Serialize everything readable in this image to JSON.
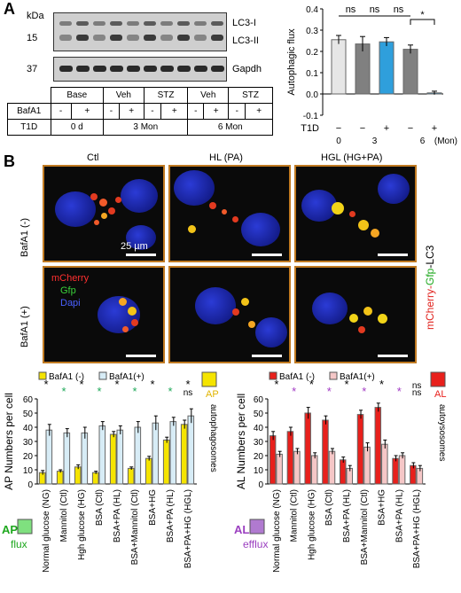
{
  "panel_a": {
    "letter": "A",
    "kda_label": "kDa",
    "mw_15": "15",
    "mw_37": "37",
    "lc3_i": "LC3-I",
    "lc3_ii": "LC3-II",
    "gapdh": "Gapdh",
    "table": {
      "groups": [
        "Base",
        "Veh",
        "STZ",
        "Veh",
        "STZ"
      ],
      "bafa1_label": "BafA1",
      "bafa1_values": [
        "-",
        "+",
        "-",
        "+",
        "-",
        "+",
        "-",
        "+",
        "-",
        "+"
      ],
      "t1d_label": "T1D",
      "t1d_values": [
        "0 d",
        "3 Mon",
        "6 Mon"
      ]
    }
  },
  "panel_b": {
    "letter": "B",
    "columns": [
      "Ctl",
      "HL (PA)",
      "HGL (HG+PA)"
    ],
    "rows": [
      "BafA1 (-)",
      "BafA1 (+)"
    ],
    "scale_label": "25 µm",
    "legend_mcherry": "mCherry",
    "legend_gfp": "Gfp",
    "legend_dapi": "Dapi",
    "side_label_a": "mCherry-",
    "side_label_b": "Gfp",
    "side_label_c": "-LC3"
  },
  "chart_data": [
    {
      "type": "bar",
      "ylabel": "Autophagic flux",
      "xlabel": "T1D",
      "ylim": [
        -0.1,
        0.4
      ],
      "yticks": [
        -0.1,
        0.0,
        0.1,
        0.2,
        0.3,
        0.4
      ],
      "categories": [
        "0",
        "3",
        "3",
        "6",
        "6"
      ],
      "t1d_marks": [
        "−",
        "−",
        "+",
        "−",
        "+"
      ],
      "x_groups": [
        "0",
        "3",
        "6"
      ],
      "x_unit": "(Mon)",
      "values": [
        0.255,
        0.235,
        0.245,
        0.21,
        0.005
      ],
      "errors": [
        0.02,
        0.035,
        0.02,
        0.02,
        0.008
      ],
      "bar_colors": [
        "#e6e6e6",
        "#808080",
        "#2f9fdc",
        "#808080",
        "#2f9fdc"
      ],
      "annotations": [
        "ns",
        "ns",
        "ns",
        "*"
      ]
    },
    {
      "type": "bar",
      "ylabel": "AP Numbers per cell",
      "ylim": [
        0,
        60
      ],
      "yticks": [
        0,
        10,
        20,
        30,
        40,
        50,
        60
      ],
      "legend": [
        "BafA1 (-)",
        "BafA1(+)"
      ],
      "right_legend": [
        "AP",
        "autophagosomes"
      ],
      "flux_label": [
        "AP",
        "flux"
      ],
      "categories": [
        "Normal glucose (NG)",
        "Mannitol (Ctl)",
        "Hgh glucose (HG)",
        "BSA (Ctl)",
        "BSA+PA (HL)",
        "BSA+Mannitol (Ctl)",
        "BSA+HG",
        "BSA+PA (HL)",
        "BSA+PA+HG (HGL)"
      ],
      "series": [
        {
          "name": "BafA1 (-)",
          "values": [
            8,
            9,
            12,
            8,
            35,
            11,
            18,
            31,
            42
          ],
          "errors": [
            1.5,
            1,
            1.5,
            1,
            2,
            1,
            1.5,
            2,
            3
          ]
        },
        {
          "name": "BafA1(+)",
          "values": [
            38,
            36,
            36,
            41,
            38,
            40,
            43,
            44,
            48
          ],
          "errors": [
            4,
            3,
            4,
            3,
            3,
            4,
            5,
            3,
            5
          ]
        }
      ],
      "annotations": [
        "*",
        "*",
        "*",
        "*",
        "*",
        "*",
        "*",
        "*",
        "*",
        "ns"
      ]
    },
    {
      "type": "bar",
      "ylabel": "AL Numbers per cell",
      "ylim": [
        0,
        60
      ],
      "yticks": [
        0,
        10,
        20,
        30,
        40,
        50,
        60
      ],
      "legend": [
        "BafA1 (-)",
        "BafA1(+)"
      ],
      "right_legend": [
        "AL",
        "autoysosomes"
      ],
      "efflux_label": [
        "AL",
        "efflux"
      ],
      "categories": [
        "Normal glucose (NG)",
        "Mannitol (Ctl)",
        "Hgh glucose (HG)",
        "BSA (Ctl)",
        "BSA+PA (HL)",
        "BSA+Mannitol (Ctl)",
        "BSA+HG",
        "BSA+PA (HL)",
        "BSA+PA+HG (HGL)"
      ],
      "series": [
        {
          "name": "BafA1 (-)",
          "values": [
            34,
            37,
            50,
            45,
            17,
            49,
            54,
            18,
            13
          ],
          "errors": [
            3,
            3,
            4,
            3,
            2,
            3,
            3,
            2,
            2
          ]
        },
        {
          "name": "BafA1(+)",
          "values": [
            21,
            23,
            20,
            23,
            11,
            26,
            28,
            20,
            11
          ],
          "errors": [
            2,
            2,
            2,
            2,
            2,
            3,
            3,
            2,
            2
          ]
        }
      ],
      "annotations": [
        "*",
        "*",
        "*",
        "*",
        "*",
        "*",
        "*",
        "*",
        "ns",
        "ns"
      ]
    }
  ]
}
